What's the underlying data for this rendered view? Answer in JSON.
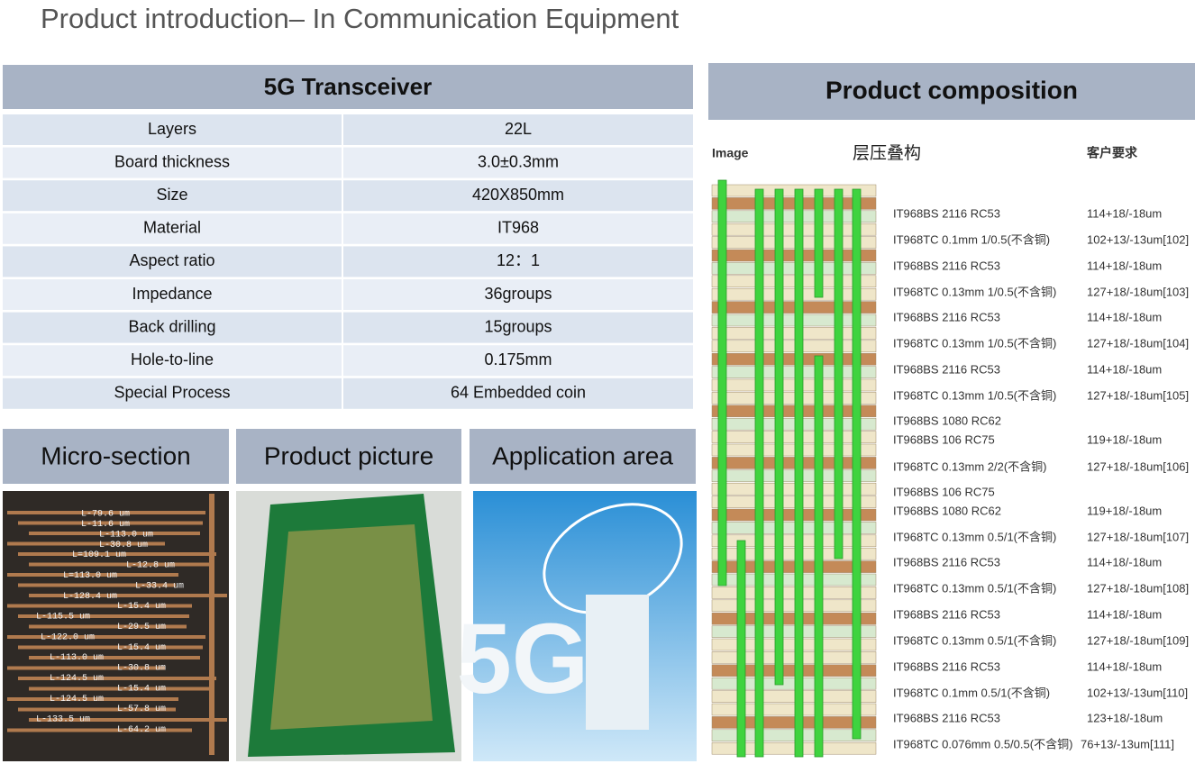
{
  "header": {
    "title": "Product introduction– In Communication Equipment"
  },
  "table": {
    "title": "5G Transceiver",
    "rows": [
      [
        "Layers",
        "22L"
      ],
      [
        "Board thickness",
        "3.0±0.3mm"
      ],
      [
        "Size",
        "420X850mm"
      ],
      [
        "Material",
        "IT968"
      ],
      [
        "Aspect ratio",
        "12：1"
      ],
      [
        "Impedance",
        "36groups"
      ],
      [
        "Back drilling",
        "15groups"
      ],
      [
        "Hole-to-line",
        "0.175mm"
      ],
      [
        "Special Process",
        "64 Embedded coin"
      ]
    ]
  },
  "sections": [
    "Micro-section",
    "Product picture",
    "Application area"
  ],
  "micro_section_labels": [
    "L-79.6 um",
    "L-11.6 um",
    "L-113.0 um",
    "L-30.8 um",
    "L=109.1 um",
    "L-12.8 um",
    "L=113.0 um",
    "L-33.4 um",
    "L-128.4 um",
    "L-15.4 um",
    "L-115.5 um",
    "L-29.5 um",
    "L-122.0 um",
    "L-15.4 um",
    "L-113.0 um",
    "L-30.8 um",
    "L-124.5 um",
    "L-15.4 um",
    "L-124.5 um",
    "L-57.8 um",
    "L-133.5 um",
    "L-64.2 um"
  ],
  "application_image_text": "5G",
  "composition": {
    "title": "Product composition",
    "headers": [
      "Image",
      "层压叠构",
      "客户要求"
    ],
    "rows": [
      {
        "lines": [
          "IT968BS 2116 RC53"
        ],
        "requirement": "114+18/-18um"
      },
      {
        "lines": [
          "IT968TC 0.1mm 1/0.5(不含铜)"
        ],
        "requirement": "102+13/-13um[102]"
      },
      {
        "lines": [
          "IT968BS 2116 RC53"
        ],
        "requirement": "114+18/-18um"
      },
      {
        "lines": [
          "IT968TC 0.13mm 1/0.5(不含铜)"
        ],
        "requirement": "127+18/-18um[103]"
      },
      {
        "lines": [
          "IT968BS 2116 RC53"
        ],
        "requirement": "114+18/-18um"
      },
      {
        "lines": [
          "IT968TC 0.13mm 1/0.5(不含铜)"
        ],
        "requirement": "127+18/-18um[104]"
      },
      {
        "lines": [
          "IT968BS 2116 RC53"
        ],
        "requirement": "114+18/-18um"
      },
      {
        "lines": [
          "IT968TC 0.13mm 1/0.5(不含铜)"
        ],
        "requirement": "127+18/-18um[105]"
      },
      {
        "lines": [
          "IT968BS 1080 RC62",
          "IT968BS 106 RC75"
        ],
        "requirement": "119+18/-18um"
      },
      {
        "lines": [
          "IT968TC 0.13mm 2/2(不含铜)"
        ],
        "requirement": "127+18/-18um[106]"
      },
      {
        "lines": [
          "IT968BS 106 RC75",
          "IT968BS 1080 RC62"
        ],
        "requirement": "119+18/-18um"
      },
      {
        "lines": [
          "IT968TC 0.13mm 0.5/1(不含铜)"
        ],
        "requirement": "127+18/-18um[107]"
      },
      {
        "lines": [
          "IT968BS 2116 RC53"
        ],
        "requirement": "114+18/-18um"
      },
      {
        "lines": [
          "IT968TC 0.13mm 0.5/1(不含铜)"
        ],
        "requirement": "127+18/-18um[108]"
      },
      {
        "lines": [
          "IT968BS 2116 RC53"
        ],
        "requirement": "114+18/-18um"
      },
      {
        "lines": [
          "IT968TC 0.13mm 0.5/1(不含铜)"
        ],
        "requirement": "127+18/-18um[109]"
      },
      {
        "lines": [
          "IT968BS 2116 RC53"
        ],
        "requirement": "114+18/-18um"
      },
      {
        "lines": [
          "IT968TC 0.1mm 0.5/1(不含铜)"
        ],
        "requirement": "102+13/-13um[110]"
      },
      {
        "lines": [
          "IT968BS 2116 RC53"
        ],
        "requirement": "123+18/-18um"
      },
      {
        "lines": [
          "IT968TC 0.076mm 0.5/0.5(不含铜)"
        ],
        "requirement": "76+13/-13um[111]"
      }
    ]
  }
}
